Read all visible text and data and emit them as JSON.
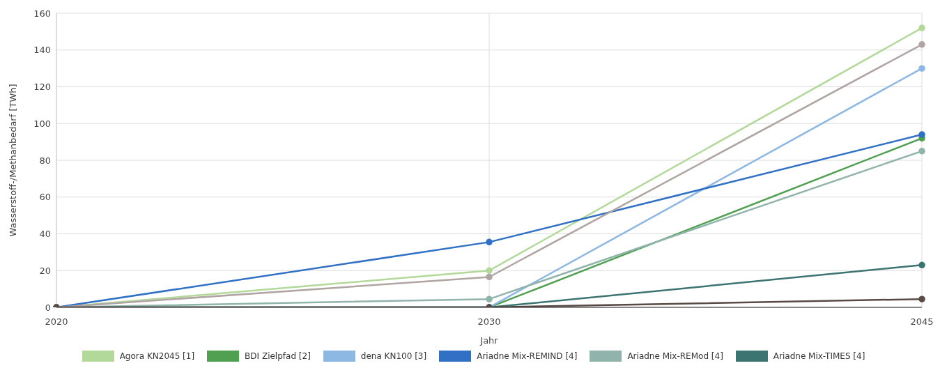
{
  "chart_data": {
    "type": "line",
    "xlabel": "Jahr",
    "ylabel": "Wasserstoff-/Methanbedarf [TWh]",
    "categories": [
      "2020",
      "2030",
      "2045"
    ],
    "ylim": [
      0,
      160
    ],
    "yticks": [
      0,
      20,
      40,
      60,
      80,
      100,
      120,
      140,
      160
    ],
    "grid": true,
    "legend": "bottom",
    "marker": "circle",
    "line_style": "solid",
    "series": [
      {
        "name": "Agora KN2045 [1]",
        "color": "#b3d99a",
        "values": [
          0,
          20,
          152
        ]
      },
      {
        "name": "BDI Zielpfad [2]",
        "color": "#4fa050",
        "values": [
          0,
          0,
          92
        ]
      },
      {
        "name": "dena KN100 [3]",
        "color": "#8cb8e3",
        "values": [
          0,
          0,
          130
        ]
      },
      {
        "name": "Ariadne Mix-REMIND [4]",
        "color": "#3070c5",
        "values": [
          0,
          35.5,
          94
        ]
      },
      {
        "name": "Ariadne Mix-REMod [4]",
        "color": "#90b4ab",
        "values": [
          0,
          4.5,
          85
        ]
      },
      {
        "name": "Ariadne Mix-TIMES [4]",
        "color": "#3c7472",
        "values": [
          0,
          0,
          23
        ]
      },
      {
        "color": "#b0a5a3",
        "values": [
          0,
          16.5,
          143
        ]
      },
      {
        "color": "#5a4a46",
        "values": [
          0,
          0,
          4.5
        ]
      }
    ]
  }
}
